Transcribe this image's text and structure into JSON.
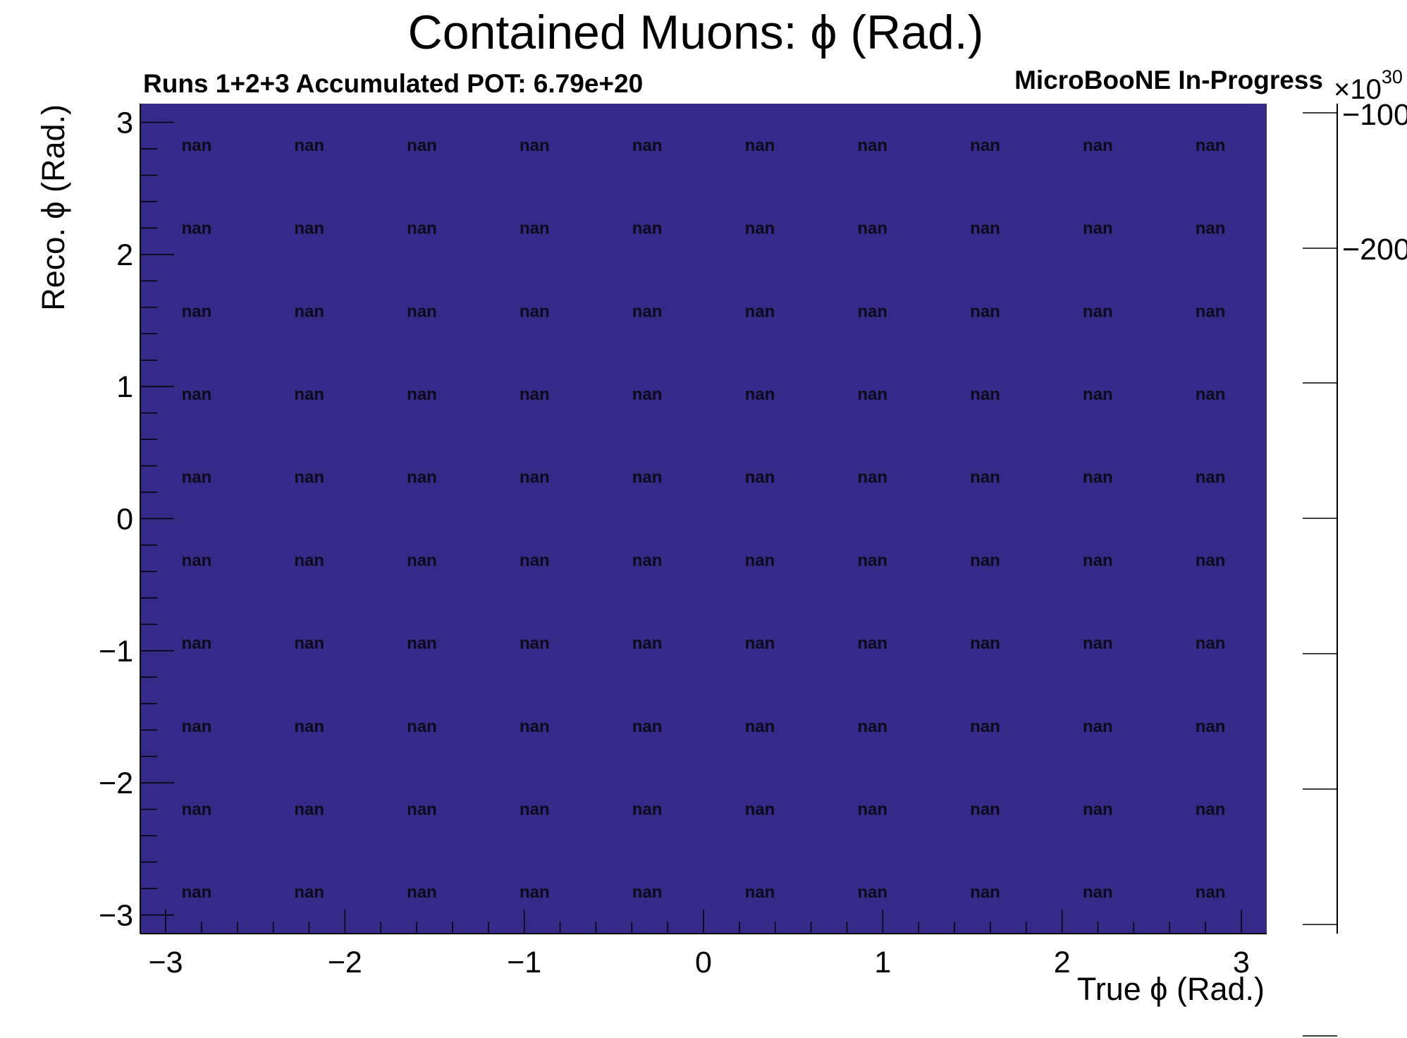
{
  "chart_data": {
    "type": "heatmap",
    "title": "Contained Muons: ϕ (Rad.)",
    "subtitle_left": "Runs 1+2+3 Accumulated POT: 6.79e+20",
    "subtitle_right": "MicroBooNE In-Progress",
    "xlabel": "True ϕ (Rad.)",
    "ylabel": "Reco. ϕ (Rad.)",
    "xlim": [
      -3.1416,
      3.1416
    ],
    "ylim": [
      -3.1416,
      3.1416
    ],
    "x_ticks": [
      -3,
      -2,
      -1,
      0,
      1,
      2,
      3
    ],
    "x_tick_labels": [
      "−3",
      "−2",
      "−1",
      "0",
      "1",
      "2",
      "3"
    ],
    "y_ticks": [
      -3,
      -2,
      -1,
      0,
      1,
      2,
      3
    ],
    "y_tick_labels": [
      "−3",
      "−2",
      "−1",
      "0",
      "1",
      "2",
      "3"
    ],
    "nx": 10,
    "ny": 10,
    "cell_value_label": "nan",
    "fill_color": "#352a87",
    "colorbar": {
      "multiplier": "×10",
      "exponent": "30",
      "tick_labels": [
        "−100",
        "−200"
      ]
    }
  }
}
